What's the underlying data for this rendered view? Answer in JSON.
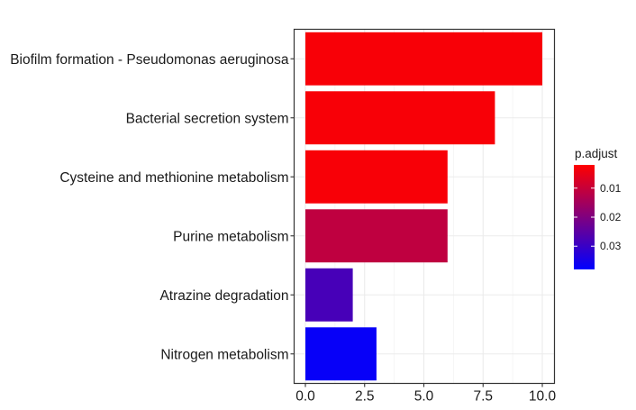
{
  "chart_data": {
    "type": "bar",
    "orientation": "horizontal",
    "title": "",
    "xlabel": "",
    "ylabel": "",
    "categories": [
      "Biofilm formation - Pseudomonas aeruginosa",
      "Bacterial secretion system",
      "Cysteine and methionine metabolism",
      "Purine metabolism",
      "Atrazine degradation",
      "Nitrogen metabolism"
    ],
    "values": [
      10,
      8,
      6,
      6,
      2,
      3
    ],
    "p_adjust": [
      0.003,
      0.003,
      0.003,
      0.011,
      0.028,
      0.037
    ],
    "xlim": [
      0,
      10
    ],
    "xticks": [
      "0.0",
      "2.5",
      "5.0",
      "7.5",
      "10.0"
    ],
    "grid": true,
    "legend": {
      "title": "p.adjust",
      "position": "right",
      "ticks": [
        "0.01",
        "0.02",
        "0.03"
      ],
      "tick_values": [
        0.01,
        0.02,
        0.03
      ],
      "range": [
        0.002,
        0.038
      ],
      "low_color": "#ff0000",
      "high_color": "#0000ff"
    }
  }
}
